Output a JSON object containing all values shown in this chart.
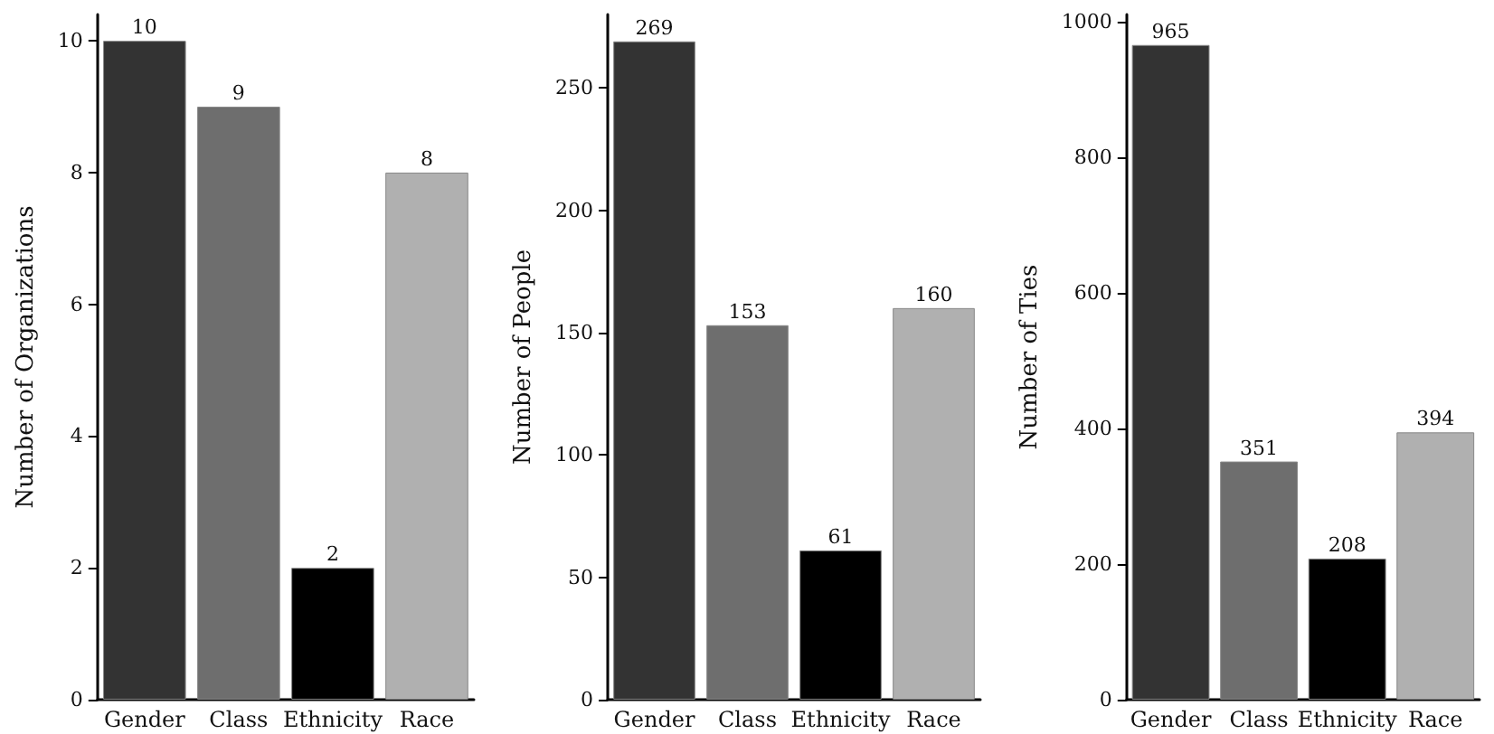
{
  "chart_data": [
    {
      "type": "bar",
      "categories": [
        "Gender",
        "Class",
        "Ethnicity",
        "Race"
      ],
      "values": [
        10,
        9,
        2,
        8
      ],
      "colors": [
        "#333333",
        "#6e6e6e",
        "#000000",
        "#b0b0b0"
      ],
      "ylabel": "Number of Organizations",
      "ylim": [
        0,
        10.4
      ],
      "yticks": [
        0,
        2,
        4,
        6,
        8,
        10
      ],
      "data_labels": true
    },
    {
      "type": "bar",
      "categories": [
        "Gender",
        "Class",
        "Ethnicity",
        "Race"
      ],
      "values": [
        269,
        153,
        61,
        160
      ],
      "colors": [
        "#333333",
        "#6e6e6e",
        "#000000",
        "#b0b0b0"
      ],
      "ylabel": "Number of People",
      "ylim": [
        0,
        280
      ],
      "yticks": [
        0,
        50,
        100,
        150,
        200,
        250
      ],
      "data_labels": true
    },
    {
      "type": "bar",
      "categories": [
        "Gender",
        "Class",
        "Ethnicity",
        "Race"
      ],
      "values": [
        965,
        351,
        208,
        394
      ],
      "colors": [
        "#333333",
        "#6e6e6e",
        "#000000",
        "#b0b0b0"
      ],
      "ylabel": "Number of Ties",
      "ylim": [
        0,
        1010
      ],
      "yticks": [
        0,
        200,
        400,
        600,
        800,
        1000
      ],
      "data_labels": true
    }
  ]
}
